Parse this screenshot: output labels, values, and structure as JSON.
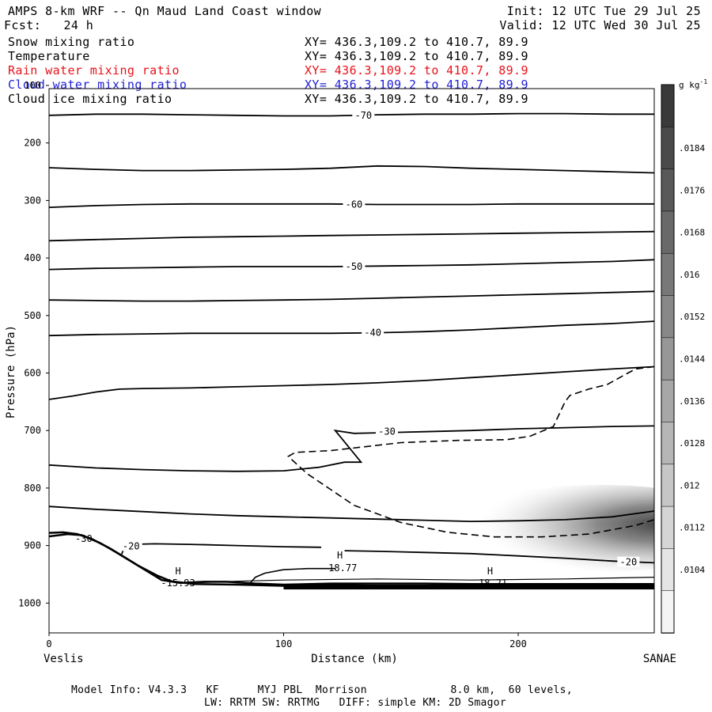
{
  "header": {
    "title": "AMPS 8-km WRF -- Qn Maud Land Coast window",
    "forecast": "Fcst:   24 h",
    "init": "Init: 12 UTC Tue 29 Jul 25",
    "valid": "Valid: 12 UTC Wed 30 Jul 25"
  },
  "fields": [
    {
      "name": "Snow mixing ratio",
      "xy": "XY= 436.3,109.2 to 410.7, 89.9",
      "color": "#000000"
    },
    {
      "name": "Temperature",
      "xy": "XY= 436.3,109.2 to 410.7, 89.9",
      "color": "#000000"
    },
    {
      "name": "Rain water mixing ratio",
      "xy": "XY= 436.3,109.2 to 410.7, 89.9",
      "color": "#e8121a"
    },
    {
      "name": "Cloud water mixing ratio",
      "xy": "XY= 436.3,109.2 to 410.7, 89.9",
      "color": "#1f1fd6"
    },
    {
      "name": "Cloud ice mixing ratio",
      "xy": "XY= 436.3,109.2 to 410.7, 89.9",
      "color": "#000000"
    }
  ],
  "footer": {
    "line1": "Model Info: V4.3.3   KF      MYJ PBL  Morrison             8.0 km,  60 levels,",
    "line2": "LW: RRTM SW: RRTMG   DIFF: simple KM: 2D Smagor"
  },
  "chart_data": {
    "type": "cross-section",
    "ylabel": "Pressure (hPa)",
    "xlabel": "Distance (km)",
    "x_left_label": "Veslis",
    "x_right_label": "SANAE",
    "xlim": [
      0,
      258
    ],
    "ylim": [
      1050,
      100
    ],
    "yticks": [
      100,
      200,
      300,
      400,
      500,
      600,
      700,
      800,
      900,
      1000
    ],
    "xticks": [
      0,
      100,
      200
    ],
    "colorbar": {
      "unit": "g kg",
      "unit_sup": "-1",
      "ticks": [
        ".0184",
        ".0176",
        ".0168",
        ".016",
        ".0152",
        ".0144",
        ".0136",
        ".0128",
        ".012",
        ".0112",
        ".0104"
      ]
    },
    "temperature_contours": [
      {
        "level": -70,
        "label": "-70",
        "label_x": 134,
        "label_y": 152,
        "points": [
          [
            0,
            152
          ],
          [
            20,
            150
          ],
          [
            40,
            150
          ],
          [
            60,
            151
          ],
          [
            80,
            152
          ],
          [
            100,
            153
          ],
          [
            120,
            153
          ],
          [
            140,
            151
          ],
          [
            160,
            150
          ],
          [
            180,
            150
          ],
          [
            200,
            149
          ],
          [
            220,
            149
          ],
          [
            240,
            150
          ],
          [
            258,
            150
          ]
        ]
      },
      {
        "level": -65,
        "label": null,
        "points": [
          [
            0,
            243
          ],
          [
            20,
            246
          ],
          [
            40,
            248
          ],
          [
            60,
            248
          ],
          [
            80,
            247
          ],
          [
            100,
            246
          ],
          [
            120,
            244
          ],
          [
            140,
            240
          ],
          [
            160,
            241
          ],
          [
            180,
            244
          ],
          [
            200,
            246
          ],
          [
            220,
            248
          ],
          [
            240,
            250
          ],
          [
            258,
            252
          ]
        ]
      },
      {
        "level": -60,
        "label": "-60",
        "label_x": 130,
        "label_y": 307,
        "points": [
          [
            0,
            312
          ],
          [
            20,
            309
          ],
          [
            40,
            307
          ],
          [
            60,
            306
          ],
          [
            80,
            306
          ],
          [
            100,
            306
          ],
          [
            120,
            306
          ],
          [
            140,
            307
          ],
          [
            160,
            307
          ],
          [
            180,
            307
          ],
          [
            200,
            306
          ],
          [
            220,
            306
          ],
          [
            240,
            306
          ],
          [
            258,
            306
          ]
        ]
      },
      {
        "level": -55,
        "label": null,
        "points": [
          [
            0,
            370
          ],
          [
            20,
            368
          ],
          [
            40,
            366
          ],
          [
            60,
            364
          ],
          [
            80,
            363
          ],
          [
            100,
            362
          ],
          [
            120,
            361
          ],
          [
            140,
            360
          ],
          [
            160,
            359
          ],
          [
            180,
            358
          ],
          [
            200,
            357
          ],
          [
            220,
            356
          ],
          [
            240,
            355
          ],
          [
            258,
            354
          ]
        ]
      },
      {
        "level": -50,
        "label": "-50",
        "label_x": 130,
        "label_y": 415,
        "points": [
          [
            0,
            420
          ],
          [
            20,
            418
          ],
          [
            40,
            417
          ],
          [
            60,
            416
          ],
          [
            80,
            415
          ],
          [
            100,
            415
          ],
          [
            120,
            415
          ],
          [
            140,
            414
          ],
          [
            160,
            413
          ],
          [
            180,
            412
          ],
          [
            200,
            410
          ],
          [
            220,
            408
          ],
          [
            240,
            406
          ],
          [
            258,
            403
          ]
        ]
      },
      {
        "level": -45,
        "label": null,
        "points": [
          [
            0,
            473
          ],
          [
            20,
            474
          ],
          [
            40,
            475
          ],
          [
            60,
            475
          ],
          [
            80,
            474
          ],
          [
            100,
            473
          ],
          [
            120,
            472
          ],
          [
            140,
            470
          ],
          [
            160,
            468
          ],
          [
            180,
            466
          ],
          [
            200,
            464
          ],
          [
            220,
            462
          ],
          [
            240,
            460
          ],
          [
            258,
            458
          ]
        ]
      },
      {
        "level": -40,
        "label": "-40",
        "label_x": 138,
        "label_y": 530,
        "points": [
          [
            0,
            535
          ],
          [
            20,
            533
          ],
          [
            40,
            532
          ],
          [
            60,
            531
          ],
          [
            80,
            531
          ],
          [
            100,
            531
          ],
          [
            120,
            531
          ],
          [
            140,
            530
          ],
          [
            160,
            528
          ],
          [
            180,
            525
          ],
          [
            200,
            521
          ],
          [
            220,
            517
          ],
          [
            240,
            514
          ],
          [
            258,
            510
          ]
        ]
      },
      {
        "level": -35,
        "label": null,
        "points": [
          [
            0,
            646
          ],
          [
            10,
            640
          ],
          [
            20,
            633
          ],
          [
            30,
            628
          ],
          [
            40,
            627
          ],
          [
            60,
            626
          ],
          [
            80,
            624
          ],
          [
            100,
            622
          ],
          [
            120,
            620
          ],
          [
            140,
            617
          ],
          [
            160,
            613
          ],
          [
            180,
            608
          ],
          [
            200,
            603
          ],
          [
            220,
            598
          ],
          [
            240,
            593
          ],
          [
            258,
            589
          ]
        ]
      },
      {
        "level": -30,
        "label": "-30",
        "label_x": 144,
        "label_y": 702,
        "points": [
          [
            0,
            760
          ],
          [
            20,
            765
          ],
          [
            40,
            768
          ],
          [
            60,
            770
          ],
          [
            80,
            771
          ],
          [
            100,
            770
          ],
          [
            115,
            764
          ],
          [
            126,
            755
          ],
          [
            133,
            755
          ],
          [
            126,
            720
          ],
          [
            122,
            700
          ],
          [
            130,
            705
          ],
          [
            140,
            704
          ],
          [
            160,
            702
          ],
          [
            180,
            700
          ],
          [
            200,
            697
          ],
          [
            220,
            695
          ],
          [
            240,
            693
          ],
          [
            258,
            692
          ]
        ]
      },
      {
        "level": -25,
        "label": null,
        "points": [
          [
            0,
            832
          ],
          [
            20,
            837
          ],
          [
            40,
            841
          ],
          [
            60,
            845
          ],
          [
            80,
            848
          ],
          [
            100,
            850
          ],
          [
            120,
            852
          ],
          [
            140,
            854
          ],
          [
            160,
            856
          ],
          [
            180,
            858
          ],
          [
            200,
            857
          ],
          [
            220,
            855
          ],
          [
            240,
            850
          ],
          [
            258,
            840
          ]
        ]
      },
      {
        "level": -20,
        "label": "-20",
        "label_x": 35,
        "label_y": 901,
        "points": [
          [
            31,
            915
          ],
          [
            32,
            903
          ],
          [
            35,
            898
          ],
          [
            45,
            897
          ],
          [
            60,
            898
          ],
          [
            80,
            900
          ],
          [
            100,
            902
          ],
          [
            116,
            903
          ]
        ]
      },
      {
        "level": -20,
        "label": "-20",
        "label_x": 247,
        "label_y": 929,
        "points": [
          [
            126,
            909
          ],
          [
            140,
            910
          ],
          [
            160,
            912
          ],
          [
            180,
            914
          ],
          [
            200,
            918
          ],
          [
            220,
            922
          ],
          [
            240,
            927
          ],
          [
            258,
            930
          ]
        ]
      }
    ],
    "highs": [
      {
        "label": "H",
        "value": "-15.93",
        "x": 55
      },
      {
        "label": "H",
        "value": "-18.77",
        "x": 124
      },
      {
        "label": "H",
        "value": "-18.21",
        "x": 188
      }
    ],
    "cloud_ice_contour_dashed": [
      [
        258,
        589
      ],
      [
        250,
        593
      ],
      [
        245,
        604
      ],
      [
        238,
        620
      ],
      [
        230,
        628
      ],
      [
        222,
        639
      ],
      [
        220,
        650
      ],
      [
        218,
        667
      ],
      [
        215,
        693
      ],
      [
        205,
        710
      ],
      [
        195,
        716
      ],
      [
        175,
        717
      ],
      [
        150,
        721
      ],
      [
        120,
        735
      ],
      [
        105,
        738
      ],
      [
        102,
        745
      ],
      [
        110,
        775
      ],
      [
        130,
        830
      ],
      [
        150,
        860
      ],
      [
        170,
        877
      ],
      [
        190,
        885
      ],
      [
        210,
        885
      ],
      [
        230,
        880
      ],
      [
        250,
        865
      ],
      [
        258,
        855
      ]
    ]
  }
}
